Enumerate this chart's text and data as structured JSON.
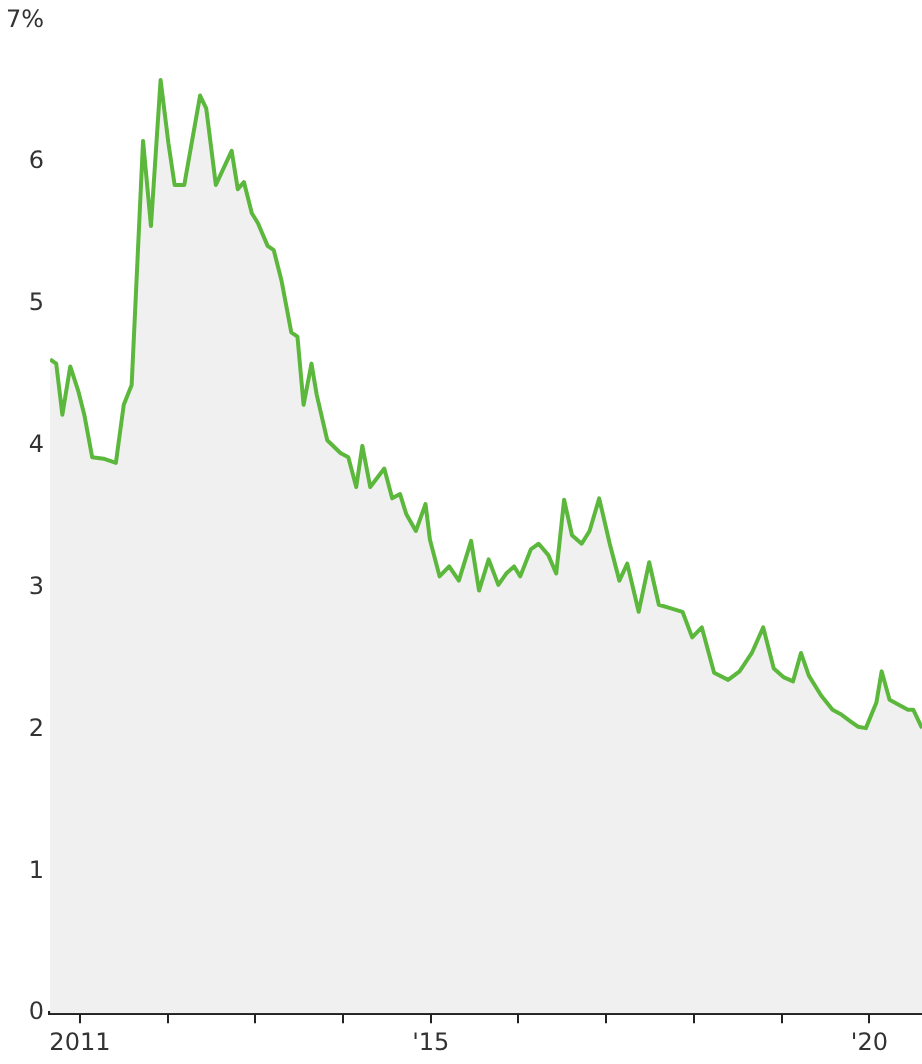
{
  "chart_data": {
    "type": "area",
    "x": [
      2010.66,
      2010.73,
      2010.8,
      2010.89,
      2010.98,
      2011.05,
      2011.14,
      2011.27,
      2011.41,
      2011.5,
      2011.59,
      2011.72,
      2011.81,
      2011.92,
      2012.01,
      2012.08,
      2012.19,
      2012.37,
      2012.44,
      2012.55,
      2012.64,
      2012.73,
      2012.8,
      2012.87,
      2012.96,
      2013.03,
      2013.14,
      2013.21,
      2013.3,
      2013.41,
      2013.48,
      2013.55,
      2013.64,
      2013.7,
      2013.82,
      2013.97,
      2014.06,
      2014.15,
      2014.22,
      2014.31,
      2014.47,
      2014.56,
      2014.65,
      2014.72,
      2014.83,
      2014.94,
      2014.99,
      2015.1,
      2015.21,
      2015.32,
      2015.46,
      2015.55,
      2015.66,
      2015.77,
      2015.86,
      2015.95,
      2016.02,
      2016.14,
      2016.23,
      2016.34,
      2016.43,
      2016.52,
      2016.61,
      2016.72,
      2016.81,
      2016.92,
      2017.04,
      2017.15,
      2017.24,
      2017.37,
      2017.49,
      2017.6,
      2017.71,
      2017.87,
      2017.98,
      2018.09,
      2018.23,
      2018.39,
      2018.52,
      2018.66,
      2018.79,
      2018.91,
      2019.02,
      2019.13,
      2019.22,
      2019.31,
      2019.45,
      2019.58,
      2019.67,
      2019.78,
      2019.87,
      2019.96,
      2020.08,
      2020.14,
      2020.23,
      2020.35,
      2020.44,
      2020.5,
      2020.6
    ],
    "series": [
      {
        "color": "#5cb83c",
        "values": [
          4.61,
          4.58,
          4.22,
          4.56,
          4.39,
          4.22,
          3.92,
          3.91,
          3.88,
          4.29,
          4.43,
          6.15,
          5.55,
          6.58,
          6.13,
          5.84,
          5.84,
          6.47,
          6.38,
          5.84,
          5.96,
          6.08,
          5.81,
          5.86,
          5.64,
          5.57,
          5.41,
          5.38,
          5.16,
          4.8,
          4.77,
          4.29,
          4.58,
          4.36,
          4.04,
          3.95,
          3.92,
          3.71,
          4.0,
          3.71,
          3.84,
          3.63,
          3.66,
          3.52,
          3.4,
          3.59,
          3.34,
          3.08,
          3.15,
          3.05,
          3.33,
          2.98,
          3.2,
          3.02,
          3.1,
          3.15,
          3.08,
          3.27,
          3.31,
          3.23,
          3.1,
          3.62,
          3.37,
          3.31,
          3.4,
          3.63,
          3.31,
          3.05,
          3.17,
          2.83,
          3.18,
          2.88,
          2.86,
          2.83,
          2.65,
          2.72,
          2.4,
          2.35,
          2.41,
          2.54,
          2.72,
          2.43,
          2.37,
          2.34,
          2.54,
          2.38,
          2.24,
          2.14,
          2.11,
          2.06,
          2.02,
          2.01,
          2.19,
          2.41,
          2.21,
          2.17,
          2.14,
          2.14,
          2.01
        ]
      }
    ],
    "xlim": [
      2010.66,
      2020.6
    ],
    "xticks": [
      {
        "value": 2011,
        "label": "2011"
      },
      {
        "value": 2012,
        "label": null
      },
      {
        "value": 2013,
        "label": null
      },
      {
        "value": 2014,
        "label": null
      },
      {
        "value": 2015,
        "label": "'15"
      },
      {
        "value": 2016,
        "label": null
      },
      {
        "value": 2017,
        "label": null
      },
      {
        "value": 2018,
        "label": null
      },
      {
        "value": 2019,
        "label": null
      },
      {
        "value": 2020,
        "label": "'20"
      }
    ],
    "ylim": [
      0,
      7
    ],
    "yticks": [
      0,
      1,
      2,
      3,
      4,
      5,
      6,
      {
        "value": 7,
        "label": "7%"
      }
    ],
    "grid": false,
    "legend": false
  }
}
